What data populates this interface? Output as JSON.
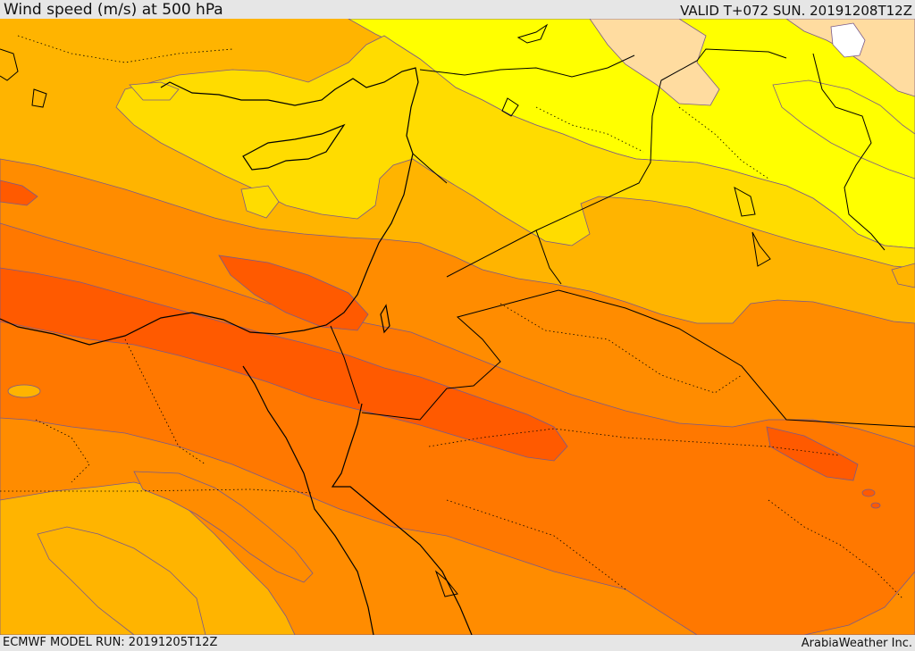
{
  "header": {
    "title": "Wind speed (m/s) at 500 hPa",
    "valid": "VALID T+072 SUN. 20191208T12Z"
  },
  "footer": {
    "model_run": "ECMWF MODEL RUN: 20191205T12Z",
    "credit": "ArabiaWeather Inc."
  },
  "map": {
    "field": "wind speed at 500 hPa",
    "colors": {
      "band_1": "#ffffff",
      "band_2": "#ffdca0",
      "band_3": "#ffff00",
      "band_4": "#ffdc00",
      "band_5": "#ffb400",
      "band_6": "#ff8c00",
      "band_7": "#ff7800",
      "band_8": "#ff5a00",
      "contour": "#7a5a8a",
      "coastline": "#000000"
    }
  }
}
